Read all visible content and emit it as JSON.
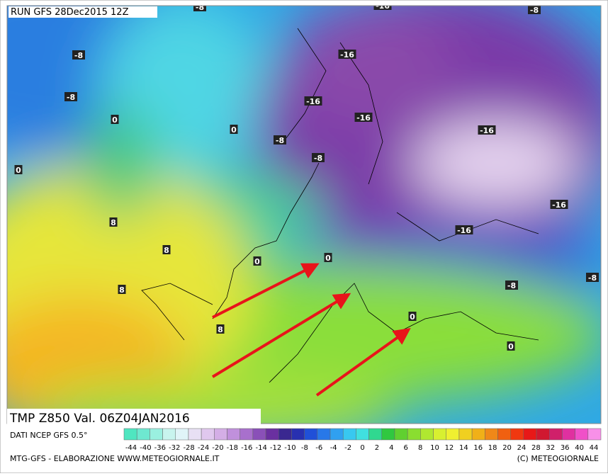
{
  "header": {
    "run": "RUN GFS 28Dec2015 12Z"
  },
  "map": {
    "labels": [
      "-8",
      "-16",
      "-8",
      "-8",
      "-16",
      "-8",
      "-16",
      "-16",
      "0",
      "0",
      "-16",
      "-8",
      "0",
      "-8",
      "-16",
      "8",
      "-16",
      "8",
      "0",
      "0",
      "8",
      "-8",
      "-8",
      "8",
      "0",
      "0"
    ]
  },
  "footer": {
    "title": "TMP  Z850  Val.  06Z04JAN2016",
    "source": "DATI NCEP GFS 0.5°",
    "credit": "MTG-GFS - ELABORAZIONE WWW.METEOGIORNALE.IT",
    "copyright": "(C) METEOGIORNALE"
  },
  "legend": {
    "labels": [
      "-44",
      "-40",
      "-36",
      "-32",
      "-28",
      "-24",
      "-20",
      "-18",
      "-16",
      "-14",
      "-12",
      "-10",
      "-8",
      "-6",
      "-4",
      "-2",
      "0",
      "2",
      "4",
      "6",
      "8",
      "10",
      "12",
      "14",
      "16",
      "18",
      "20",
      "24",
      "28",
      "32",
      "36",
      "40",
      "44"
    ]
  }
}
